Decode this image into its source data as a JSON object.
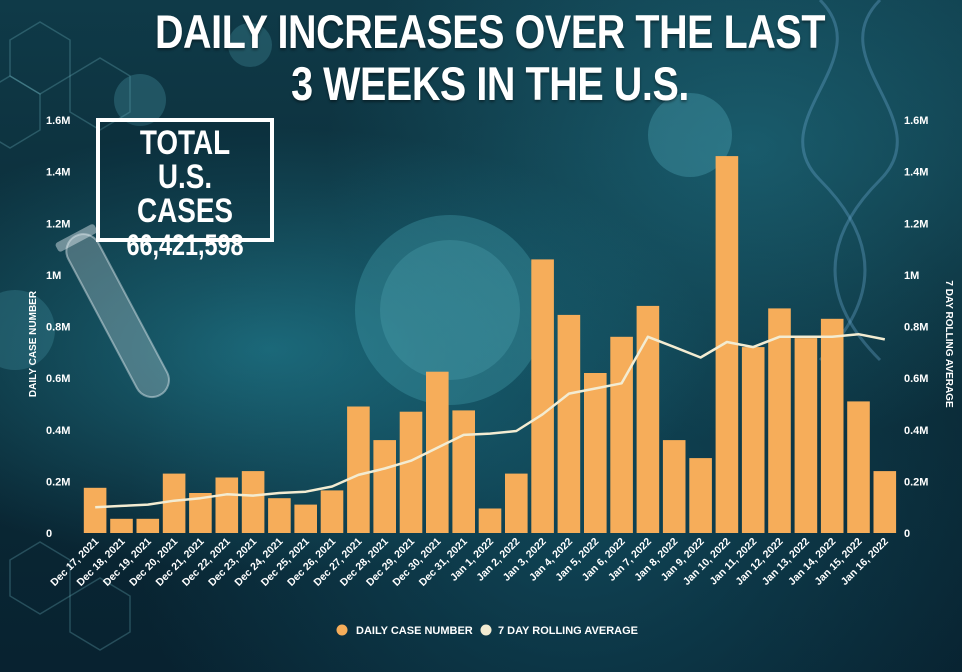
{
  "title": "DAILY INCREASES OVER THE LAST 3 WEEKS IN THE U.S.",
  "total_box": {
    "label": "TOTAL U.S. CASES",
    "value": "66,421,598"
  },
  "colors": {
    "bar": "#f6ad5a",
    "line": "#f3ecd2",
    "background": "#0b2c38"
  },
  "icons": [
    "virus-icon",
    "test-tube-icon",
    "dna-helix-icon"
  ],
  "chart_data": {
    "type": "bar",
    "title": "DAILY INCREASES OVER THE LAST 3 WEEKS IN THE U.S.",
    "categories": [
      "Dec 17, 2021",
      "Dec 18, 2021",
      "Dec 19, 2021",
      "Dec 20, 2021",
      "Dec 21, 2021",
      "Dec 22, 2021",
      "Dec 23, 2021",
      "Dec 24, 2021",
      "Dec 25, 2021",
      "Dec 26, 2021",
      "Dec 27, 2021",
      "Dec 28, 2021",
      "Dec 29, 2021",
      "Dec 30, 2021",
      "Dec 31, 2021",
      "Jan 1, 2022",
      "Jan 2, 2022",
      "Jan 3, 2022",
      "Jan 4, 2022",
      "Jan 5, 2022",
      "Jan 6, 2022",
      "Jan 7, 2022",
      "Jan 8, 2022",
      "Jan 9, 2022",
      "Jan 10, 2022",
      "Jan 11, 2022",
      "Jan 12, 2022",
      "Jan 13, 2022",
      "Jan 14, 2022",
      "Jan 15, 2022",
      "Jan 16, 2022"
    ],
    "series": [
      {
        "name": "DAILY CASE NUMBER",
        "type": "bar",
        "axis": "left",
        "values": [
          175000,
          55000,
          55000,
          230000,
          155000,
          215000,
          240000,
          135000,
          110000,
          165000,
          490000,
          360000,
          470000,
          625000,
          475000,
          95000,
          230000,
          1060000,
          845000,
          620000,
          760000,
          880000,
          360000,
          290000,
          1460000,
          720000,
          870000,
          755000,
          830000,
          510000,
          240000
        ]
      },
      {
        "name": "7 DAY ROLLING AVERAGE",
        "type": "line",
        "axis": "right",
        "values": [
          100000,
          105000,
          110000,
          125000,
          135000,
          150000,
          145000,
          155000,
          160000,
          180000,
          225000,
          250000,
          280000,
          330000,
          380000,
          385000,
          395000,
          460000,
          540000,
          560000,
          580000,
          760000,
          720000,
          680000,
          740000,
          720000,
          760000,
          760000,
          760000,
          770000,
          750000
        ]
      }
    ],
    "ylabel": "DAILY CASE NUMBER",
    "y2label": "7 DAY ROLLING AVERAGE",
    "ylim": [
      0,
      1600000
    ],
    "y2lim": [
      0,
      1600000
    ],
    "yticks": [
      "0",
      "0.2M",
      "0.4M",
      "0.6M",
      "0.8M",
      "1M",
      "1.2M",
      "1.4M",
      "1.6M"
    ],
    "grid": false,
    "legend": {
      "position": "bottom-center",
      "entries": [
        "DAILY CASE NUMBER",
        "7 DAY ROLLING AVERAGE"
      ]
    }
  }
}
